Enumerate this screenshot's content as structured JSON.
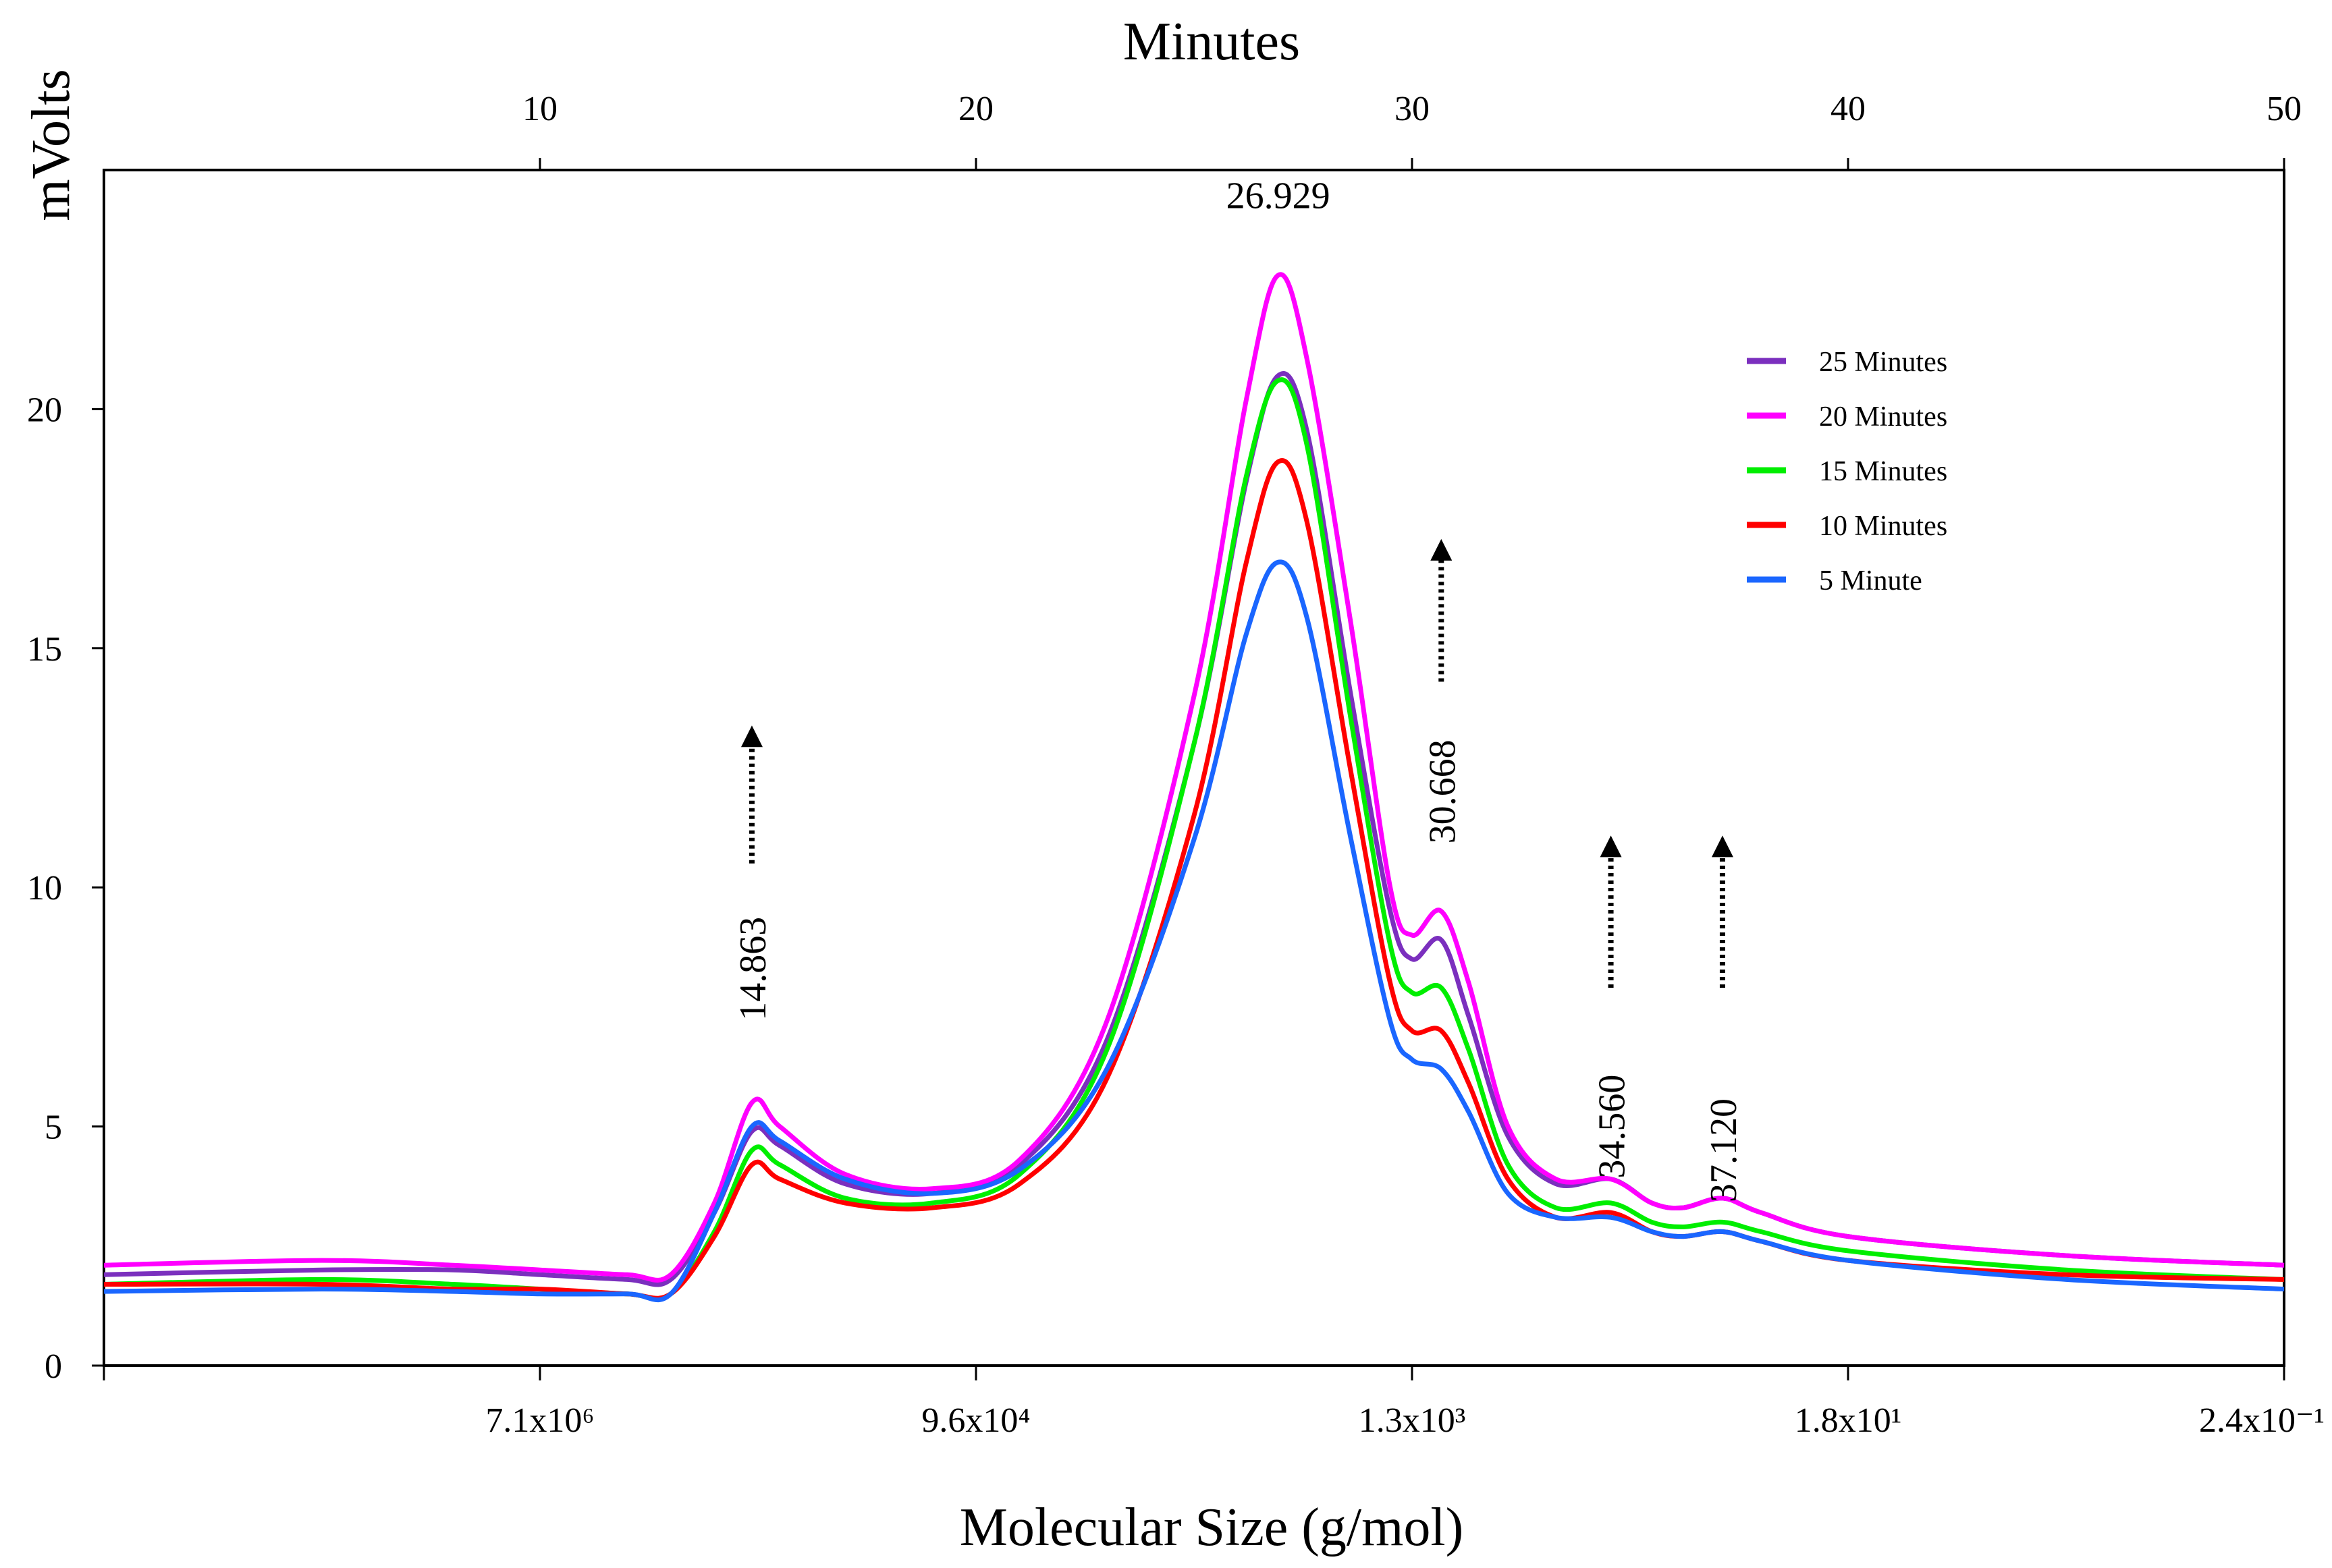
{
  "chart_data": {
    "type": "line",
    "top_axis": {
      "label": "Minutes",
      "range": [
        0,
        50
      ],
      "ticks": [
        10,
        20,
        30,
        40,
        50
      ],
      "tick_labels": [
        "10",
        "20",
        "30",
        "40",
        "50"
      ]
    },
    "bottom_axis": {
      "label": "Molecular Size (g/mol)",
      "ticks_at_minutes": [
        10,
        20,
        30,
        40,
        50
      ],
      "tick_labels": [
        "7.1x10⁶",
        "9.6x10⁴",
        "1.3x10³",
        "1.8x10¹",
        "2.4x10⁻¹"
      ]
    },
    "y_axis": {
      "label": "mVolts",
      "range": [
        0,
        25
      ],
      "ticks": [
        0,
        5,
        10,
        15,
        20
      ],
      "tick_labels": [
        "0",
        "5",
        "10",
        "15",
        "20"
      ]
    },
    "legend": [
      {
        "name": "25 Minutes",
        "color": "#7b2fbe"
      },
      {
        "name": "20 Minutes",
        "color": "#ff00ff"
      },
      {
        "name": "15 Minutes",
        "color": "#00ee00"
      },
      {
        "name": "10 Minutes",
        "color": "#ff0000"
      },
      {
        "name": "5 Minute",
        "color": "#1a66ff"
      }
    ],
    "series": [
      {
        "name": "25 Minutes",
        "color": "#7b2fbe",
        "x": [
          0,
          5,
          8,
          10,
          12,
          13,
          14,
          14.86,
          15.5,
          17,
          19,
          21,
          23,
          25,
          26.2,
          26.93,
          27.6,
          28.6,
          29.5,
          30.0,
          30.67,
          31.3,
          32.2,
          33.3,
          34.56,
          35.5,
          36.2,
          37.12,
          38,
          40,
          45,
          50
        ],
        "y": [
          1.9,
          2.0,
          2.0,
          1.9,
          1.8,
          1.8,
          3.2,
          4.9,
          4.6,
          3.8,
          3.6,
          4.2,
          6.8,
          13.0,
          18.5,
          20.7,
          19.5,
          14.0,
          9.5,
          8.5,
          8.9,
          7.3,
          4.8,
          3.8,
          3.9,
          3.4,
          3.3,
          3.5,
          3.2,
          2.7,
          2.3,
          2.1
        ]
      },
      {
        "name": "20 Minutes",
        "color": "#ff00ff",
        "x": [
          0,
          5,
          8,
          10,
          12,
          13,
          14,
          14.86,
          15.5,
          17,
          19,
          21,
          23,
          25,
          26.2,
          26.93,
          27.6,
          28.6,
          29.5,
          30.0,
          30.67,
          31.3,
          32.2,
          33.3,
          34.56,
          35.5,
          36.2,
          37.12,
          38,
          40,
          45,
          50
        ],
        "y": [
          2.1,
          2.2,
          2.1,
          2.0,
          1.9,
          1.9,
          3.4,
          5.5,
          5.0,
          4.0,
          3.7,
          4.3,
          7.2,
          14.0,
          20.2,
          22.8,
          21.0,
          15.5,
          10.0,
          9.0,
          9.5,
          8.0,
          5.0,
          3.9,
          3.9,
          3.4,
          3.3,
          3.5,
          3.2,
          2.7,
          2.3,
          2.1
        ]
      },
      {
        "name": "15 Minutes",
        "color": "#00ee00",
        "x": [
          0,
          5,
          8,
          10,
          12,
          13,
          14,
          14.86,
          15.5,
          17,
          19,
          21,
          23,
          25,
          26.2,
          26.93,
          27.6,
          28.6,
          29.5,
          30.0,
          30.67,
          31.3,
          32.2,
          33.3,
          34.56,
          35.5,
          36.2,
          37.12,
          38,
          40,
          45,
          50
        ],
        "y": [
          1.7,
          1.8,
          1.7,
          1.6,
          1.5,
          1.5,
          2.8,
          4.5,
          4.2,
          3.5,
          3.4,
          4.0,
          6.6,
          13.0,
          18.6,
          20.6,
          19.2,
          13.5,
          8.8,
          7.8,
          7.9,
          6.6,
          4.2,
          3.3,
          3.4,
          3.0,
          2.9,
          3.0,
          2.8,
          2.4,
          2.0,
          1.8
        ]
      },
      {
        "name": "10 Minutes",
        "color": "#ff0000",
        "x": [
          0,
          5,
          8,
          10,
          12,
          13,
          14,
          14.86,
          15.5,
          17,
          19,
          21,
          23,
          25,
          26.2,
          26.93,
          27.6,
          28.6,
          29.5,
          30.0,
          30.67,
          31.3,
          32.2,
          33.3,
          34.56,
          35.5,
          36.2,
          37.12,
          38,
          40,
          45,
          50
        ],
        "y": [
          1.7,
          1.7,
          1.6,
          1.6,
          1.5,
          1.5,
          2.7,
          4.2,
          3.9,
          3.4,
          3.3,
          3.8,
          6.0,
          11.5,
          16.8,
          18.9,
          17.6,
          12.4,
          8.0,
          7.0,
          7.0,
          5.9,
          3.9,
          3.1,
          3.2,
          2.8,
          2.7,
          2.8,
          2.6,
          2.2,
          1.9,
          1.8
        ]
      },
      {
        "name": "5 Minute",
        "color": "#1a66ff",
        "x": [
          0,
          5,
          8,
          10,
          12,
          13,
          14,
          14.86,
          15.5,
          17,
          19,
          21,
          23,
          25,
          26.2,
          26.93,
          27.6,
          28.6,
          29.5,
          30.0,
          30.67,
          31.3,
          32.2,
          33.3,
          34.56,
          35.5,
          36.2,
          37.12,
          38,
          40,
          45,
          50
        ],
        "y": [
          1.55,
          1.6,
          1.55,
          1.5,
          1.5,
          1.5,
          3.2,
          5.0,
          4.7,
          3.9,
          3.6,
          4.1,
          6.2,
          11.0,
          15.3,
          16.8,
          15.6,
          11.0,
          7.2,
          6.4,
          6.2,
          5.3,
          3.6,
          3.1,
          3.1,
          2.8,
          2.7,
          2.8,
          2.6,
          2.2,
          1.8,
          1.6
        ]
      }
    ],
    "annotations": [
      {
        "text": "26.929",
        "x": 26.93,
        "y": 24.2,
        "rotated": false,
        "arrow": false
      },
      {
        "text": "14.863",
        "x": 14.86,
        "y": 8.3,
        "rotated": true,
        "arrow": true,
        "arrow_y0": 10.5,
        "arrow_y1": 13.3
      },
      {
        "text": "30.668",
        "x": 30.67,
        "y": 12.0,
        "rotated": true,
        "arrow": true,
        "arrow_y0": 14.3,
        "arrow_y1": 17.2
      },
      {
        "text": "34.560",
        "x": 34.56,
        "y": 5.0,
        "rotated": true,
        "arrow": true,
        "arrow_y0": 7.9,
        "arrow_y1": 11.0
      },
      {
        "text": "37.120",
        "x": 37.12,
        "y": 4.5,
        "rotated": true,
        "arrow": true,
        "arrow_y0": 7.9,
        "arrow_y1": 11.0
      }
    ]
  }
}
